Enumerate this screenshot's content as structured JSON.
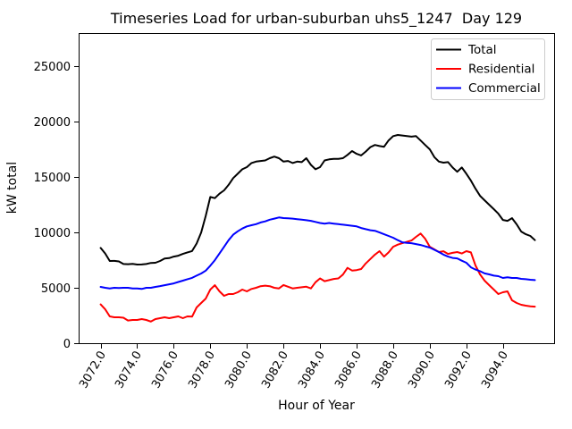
{
  "window": {
    "background": "#ffffff"
  },
  "chart_data": {
    "type": "line",
    "title": "Timeseries Load for urban-suburban uhs5_1247  Day 129",
    "xlabel": "Hour of Year",
    "ylabel": "kW total",
    "xlim": [
      3070.8,
      3096.8
    ],
    "ylim": [
      0,
      28000
    ],
    "grid": false,
    "legend_position": "upper right",
    "x_ticks": [
      3072.0,
      3074.0,
      3076.0,
      3078.0,
      3080.0,
      3082.0,
      3084.0,
      3086.0,
      3088.0,
      3090.0,
      3092.0,
      3094.0
    ],
    "x_tick_labels": [
      "3072.0",
      "3074.0",
      "3076.0",
      "3078.0",
      "3080.0",
      "3082.0",
      "3084.0",
      "3086.0",
      "3088.0",
      "3090.0",
      "3092.0",
      "3094.0"
    ],
    "x_tick_rotation_deg": 60,
    "y_ticks": [
      0,
      5000,
      10000,
      15000,
      20000,
      25000
    ],
    "y_tick_labels": [
      "0",
      "5000",
      "10000",
      "15000",
      "20000",
      "25000"
    ],
    "x": [
      3072.0,
      3072.25,
      3072.5,
      3072.75,
      3073.0,
      3073.25,
      3073.5,
      3073.75,
      3074.0,
      3074.25,
      3074.5,
      3074.75,
      3075.0,
      3075.25,
      3075.5,
      3075.75,
      3076.0,
      3076.25,
      3076.5,
      3076.75,
      3077.0,
      3077.25,
      3077.5,
      3077.75,
      3078.0,
      3078.25,
      3078.5,
      3078.75,
      3079.0,
      3079.25,
      3079.5,
      3079.75,
      3080.0,
      3080.25,
      3080.5,
      3080.75,
      3081.0,
      3081.25,
      3081.5,
      3081.75,
      3082.0,
      3082.25,
      3082.5,
      3082.75,
      3083.0,
      3083.25,
      3083.5,
      3083.75,
      3084.0,
      3084.25,
      3084.5,
      3084.75,
      3085.0,
      3085.25,
      3085.5,
      3085.75,
      3086.0,
      3086.25,
      3086.5,
      3086.75,
      3087.0,
      3087.25,
      3087.5,
      3087.75,
      3088.0,
      3088.25,
      3088.5,
      3088.75,
      3089.0,
      3089.25,
      3089.5,
      3089.75,
      3090.0,
      3090.25,
      3090.5,
      3090.75,
      3091.0,
      3091.25,
      3091.5,
      3091.75,
      3092.0,
      3092.25,
      3092.5,
      3092.75,
      3093.0,
      3093.25,
      3093.5,
      3093.75,
      3094.0,
      3094.25,
      3094.5,
      3094.75,
      3095.0,
      3095.25,
      3095.5,
      3095.75
    ],
    "series": [
      {
        "name": "Total",
        "color": "#000000",
        "values": [
          8600,
          8100,
          7420,
          7430,
          7380,
          7150,
          7130,
          7160,
          7100,
          7110,
          7150,
          7250,
          7260,
          7420,
          7650,
          7680,
          7820,
          7900,
          8060,
          8200,
          8320,
          9000,
          10000,
          11500,
          13200,
          13100,
          13500,
          13800,
          14300,
          14900,
          15300,
          15700,
          15900,
          16270,
          16400,
          16450,
          16500,
          16700,
          16850,
          16700,
          16400,
          16450,
          16270,
          16400,
          16350,
          16700,
          16100,
          15700,
          15900,
          16500,
          16600,
          16650,
          16650,
          16700,
          17000,
          17350,
          17100,
          16950,
          17300,
          17700,
          17900,
          17800,
          17740,
          18310,
          18700,
          18800,
          18750,
          18700,
          18650,
          18700,
          18300,
          17900,
          17500,
          16800,
          16400,
          16300,
          16350,
          15860,
          15480,
          15860,
          15300,
          14680,
          13950,
          13310,
          12900,
          12500,
          12100,
          11690,
          11130,
          11050,
          11290,
          10730,
          10080,
          9840,
          9680,
          9300
        ]
      },
      {
        "name": "Residential",
        "color": "#ff0000",
        "values": [
          3500,
          3060,
          2420,
          2340,
          2340,
          2300,
          2050,
          2100,
          2100,
          2180,
          2100,
          1950,
          2180,
          2260,
          2340,
          2260,
          2340,
          2420,
          2260,
          2420,
          2400,
          3230,
          3630,
          4030,
          4840,
          5240,
          4680,
          4280,
          4440,
          4440,
          4600,
          4840,
          4680,
          4900,
          5000,
          5150,
          5200,
          5150,
          5000,
          4950,
          5250,
          5100,
          4950,
          5000,
          5050,
          5100,
          4950,
          5500,
          5850,
          5600,
          5700,
          5800,
          5850,
          6200,
          6800,
          6560,
          6600,
          6700,
          7200,
          7600,
          8000,
          8310,
          7820,
          8200,
          8710,
          8900,
          9030,
          9150,
          9270,
          9600,
          9900,
          9430,
          8710,
          8470,
          8230,
          8300,
          8060,
          8160,
          8230,
          8100,
          8310,
          8200,
          7020,
          6210,
          5650,
          5240,
          4840,
          4440,
          4600,
          4680,
          3870,
          3630,
          3470,
          3390,
          3330,
          3300
        ]
      },
      {
        "name": "Commercial",
        "color": "#0000ff",
        "values": [
          5080,
          5000,
          4950,
          5000,
          4980,
          5000,
          5000,
          4950,
          4950,
          4900,
          5000,
          5000,
          5080,
          5160,
          5240,
          5320,
          5400,
          5530,
          5650,
          5780,
          5900,
          6100,
          6290,
          6550,
          7000,
          7500,
          8100,
          8700,
          9300,
          9800,
          10100,
          10350,
          10550,
          10650,
          10750,
          10900,
          11000,
          11150,
          11250,
          11350,
          11300,
          11280,
          11250,
          11200,
          11150,
          11100,
          11050,
          10950,
          10850,
          10800,
          10850,
          10800,
          10750,
          10700,
          10650,
          10600,
          10550,
          10400,
          10300,
          10200,
          10150,
          10000,
          9840,
          9680,
          9520,
          9300,
          9110,
          9050,
          9030,
          8950,
          8870,
          8750,
          8630,
          8430,
          8230,
          8000,
          7820,
          7700,
          7660,
          7450,
          7260,
          6850,
          6650,
          6500,
          6300,
          6210,
          6100,
          6050,
          5890,
          5950,
          5890,
          5890,
          5810,
          5780,
          5730,
          5700
        ]
      }
    ],
    "style": {
      "line_width": 2,
      "axes_color": "#000000",
      "legend_border_color": "#cccccc",
      "legend_background": "#ffffff"
    }
  }
}
